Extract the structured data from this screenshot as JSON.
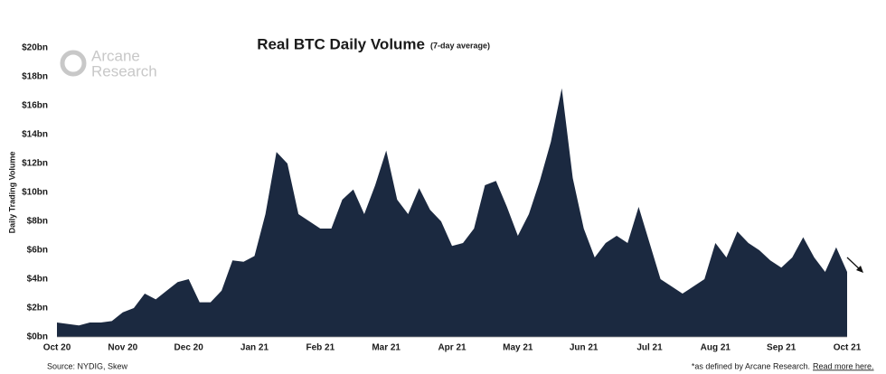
{
  "chart_data": {
    "type": "area",
    "title": "Real BTC Daily Volume",
    "subtitle": "(7-day average)",
    "y_label": "Daily Trading Volume",
    "source": "Source: NYDIG, Skew",
    "note": "*as defined by Arcane Research.",
    "link": "Read more here.",
    "logo": [
      "Arcane",
      "Research"
    ],
    "color": "#1b2940",
    "grid": false,
    "categories": [
      "Oct 20",
      null,
      null,
      null,
      null,
      null,
      "Nov 20",
      null,
      null,
      null,
      null,
      null,
      "Dec 20",
      null,
      null,
      null,
      null,
      null,
      "Jan 21",
      null,
      null,
      null,
      null,
      null,
      "Feb 21",
      null,
      null,
      null,
      null,
      null,
      "Mar 21",
      null,
      null,
      null,
      null,
      null,
      "Apr 21",
      null,
      null,
      null,
      null,
      null,
      "May 21",
      null,
      null,
      null,
      null,
      null,
      "Jun 21",
      null,
      null,
      null,
      null,
      null,
      "Jul 21",
      null,
      null,
      null,
      null,
      null,
      "Aug 21",
      null,
      null,
      null,
      null,
      null,
      "Sep 21",
      null,
      null,
      null,
      null,
      null,
      "Oct 21"
    ],
    "values": [
      1.0,
      0.9,
      0.8,
      1.0,
      1.0,
      1.1,
      1.7,
      2.0,
      3.0,
      2.6,
      3.2,
      3.8,
      4.0,
      2.4,
      2.4,
      3.2,
      5.3,
      5.2,
      5.6,
      8.5,
      12.8,
      12.0,
      8.5,
      8.0,
      7.5,
      7.5,
      9.5,
      10.2,
      8.5,
      10.5,
      12.9,
      9.5,
      8.5,
      10.3,
      8.8,
      8.0,
      6.3,
      6.5,
      7.5,
      10.5,
      10.8,
      9.0,
      7.0,
      8.5,
      10.8,
      13.5,
      17.2,
      11.0,
      7.5,
      5.5,
      6.5,
      7.0,
      6.5,
      9.0,
      6.5,
      4.0,
      3.5,
      3.0,
      3.5,
      4.0,
      6.5,
      5.5,
      7.3,
      6.5,
      6.0,
      5.3,
      4.8,
      5.5,
      6.9,
      5.5,
      4.5,
      6.2,
      4.5
    ],
    "ylim": [
      0,
      20
    ],
    "yticks": [
      {
        "value": 0,
        "label": "$0bn"
      },
      {
        "value": 2,
        "label": "$2bn"
      },
      {
        "value": 4,
        "label": "$4bn"
      },
      {
        "value": 6,
        "label": "$6bn"
      },
      {
        "value": 8,
        "label": "$8bn"
      },
      {
        "value": 10,
        "label": "$10bn"
      },
      {
        "value": 12,
        "label": "$12bn"
      },
      {
        "value": 14,
        "label": "$14bn"
      },
      {
        "value": 16,
        "label": "$16bn"
      },
      {
        "value": 18,
        "label": "$18bn"
      },
      {
        "value": 20,
        "label": "$20bn"
      }
    ]
  }
}
